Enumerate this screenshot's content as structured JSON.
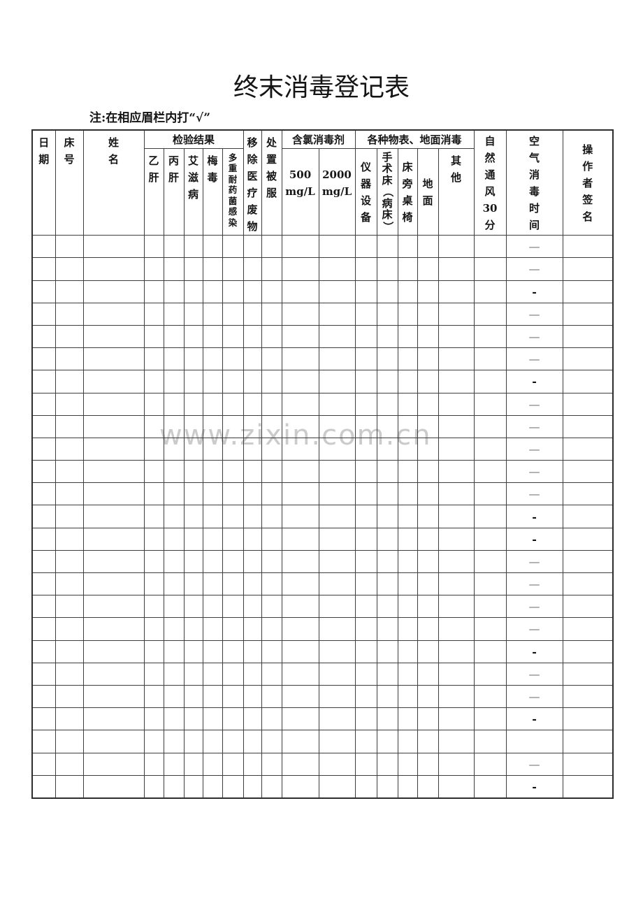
{
  "page": {
    "title": "终末消毒登记表",
    "note": "注:在相应眉栏内打“√”",
    "watermark": "www.zixin.com.cn"
  },
  "table": {
    "header": {
      "date": "日期",
      "bed_no": "床号",
      "name": "姓名",
      "test_results_group": "检验结果",
      "test_results": [
        "乙肝",
        "丙肝",
        "艾滋病",
        "梅毒",
        "多重耐药菌感染"
      ],
      "remove_medical_waste": "移除医疗废物",
      "dispose_linens": "处置被服",
      "chlorine_group": "含氯消毒剂",
      "chlorine": [
        "500 mg/L",
        "2000 mg/L"
      ],
      "surfaces_group": "各种物表、地面消毒",
      "surfaces": [
        "仪器设备",
        "手术床（病床）",
        "床旁桌椅",
        "地面",
        "其他"
      ],
      "natural_ventilation": "自然通风30分",
      "air_disinfection_time": "空气消毒时间",
      "operator_signature": "操作者签名"
    },
    "columns_count": 20,
    "air_time_column_index": 18,
    "rows": [
      {
        "air_time": "—"
      },
      {
        "air_time": "—"
      },
      {
        "air_time": "-"
      },
      {
        "air_time": "—"
      },
      {
        "air_time": "—"
      },
      {
        "air_time": "—"
      },
      {
        "air_time": "-"
      },
      {
        "air_time": "—"
      },
      {
        "air_time": "—"
      },
      {
        "air_time": "—"
      },
      {
        "air_time": "—"
      },
      {
        "air_time": "—"
      },
      {
        "air_time": "-"
      },
      {
        "air_time": "-"
      },
      {
        "air_time": "—"
      },
      {
        "air_time": "—"
      },
      {
        "air_time": "—"
      },
      {
        "air_time": "—"
      },
      {
        "air_time": "-"
      },
      {
        "air_time": "—"
      },
      {
        "air_time": "—"
      },
      {
        "air_time": "-"
      },
      {
        "air_time": ""
      },
      {
        "air_time": "—"
      },
      {
        "air_time": "-"
      }
    ]
  }
}
